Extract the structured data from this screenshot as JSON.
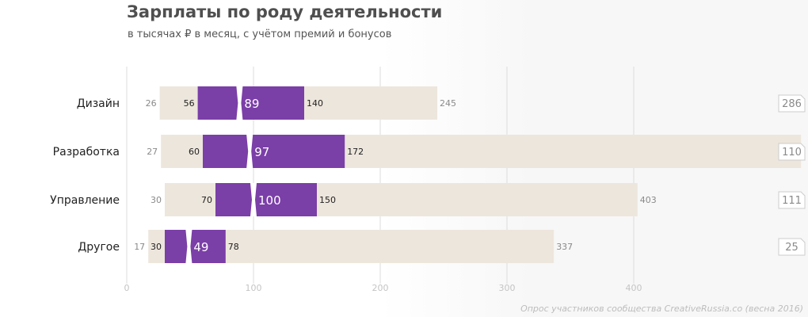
{
  "header": {
    "title": "Зарплаты по роду деятельности",
    "subtitle": "в тысячах ₽ в месяц, с учётом премий и бонусов"
  },
  "footnote": "Опрос участников сообщества CreativeRussia.co (весна 2016)",
  "colors": {
    "range": "#ede6dc",
    "interquartile": "#7b3fa8",
    "grid": "#dddddd",
    "label": "#555555",
    "badge_border": "#cccccc"
  },
  "chart_data": {
    "type": "bar",
    "orientation": "horizontal",
    "description_of_encoding": "",
    "categories": [
      "Дизайн",
      "Разработка",
      "Управление",
      "Другое"
    ],
    "series": [
      {
        "name": "",
        "values": [
          26,
          27,
          30,
          17
        ]
      },
      {
        "name": "",
        "values": [
          56,
          60,
          70,
          30
        ]
      },
      {
        "name": "",
        "values": [
          89,
          97,
          100,
          49
        ]
      },
      {
        "name": "",
        "values": [
          140,
          172,
          150,
          78
        ]
      },
      {
        "name": "",
        "values": [
          245,
          532,
          403,
          337
        ]
      }
    ],
    "respondents": [
      286,
      110,
      111,
      25
    ],
    "xlim": [
      0,
      500
    ],
    "xticks": [
      0,
      100,
      200,
      300,
      400
    ],
    "grid": true
  }
}
